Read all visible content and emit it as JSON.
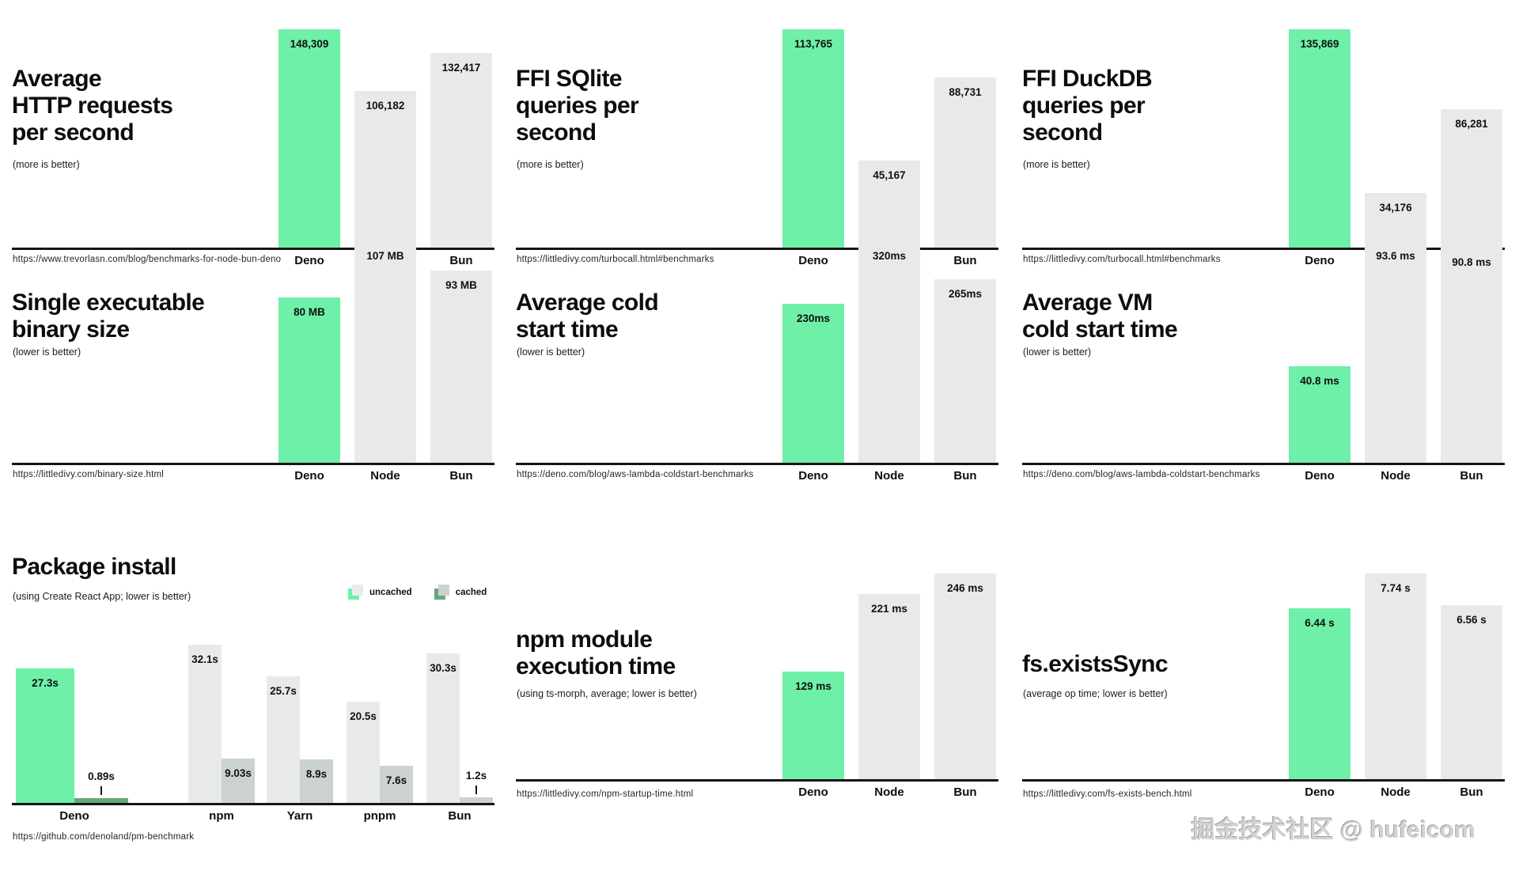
{
  "watermark": "掘金技术社区 @ hufeicom",
  "colors": {
    "deno_green": "#6ef0a8",
    "bar_gray": "#e8eaea",
    "cached_gray": "#ccd1d1",
    "cached_green": "#66a87b",
    "baseline_black": "#151515"
  },
  "chart_data": [
    {
      "type": "bar",
      "title_lines": [
        "Average",
        "HTTP requests",
        "per second"
      ],
      "subtitle": "(more is better)",
      "source_url": "https://www.trevorlasn.com/blog/benchmarks-for-node-bun-deno",
      "categories": [
        "Deno",
        "Node",
        "Bun"
      ],
      "values": [
        148309,
        106182,
        132417
      ],
      "display_values": [
        "148,309",
        "106,182",
        "132,417"
      ],
      "highlight_category": "Deno",
      "better": "more"
    },
    {
      "type": "bar",
      "title_lines": [
        "FFI SQlite",
        "queries per",
        "second"
      ],
      "subtitle": "(more is better)",
      "source_url": "https://littledivy.com/turbocall.html#benchmarks",
      "categories": [
        "Deno",
        "Node",
        "Bun"
      ],
      "values": [
        113765,
        45167,
        88731
      ],
      "display_values": [
        "113,765",
        "45,167",
        "88,731"
      ],
      "highlight_category": "Deno",
      "better": "more"
    },
    {
      "type": "bar",
      "title_lines": [
        "FFI DuckDB",
        "queries per",
        "second"
      ],
      "subtitle": "(more is better)",
      "source_url": "https://littledivy.com/turbocall.html#benchmarks",
      "categories": [
        "Deno",
        "Node",
        "Bun"
      ],
      "values": [
        135869,
        34176,
        86281
      ],
      "display_values": [
        "135,869",
        "34,176",
        "86,281"
      ],
      "highlight_category": "Deno",
      "better": "more"
    },
    {
      "type": "bar",
      "title_lines": [
        "Single executable",
        "binary size"
      ],
      "subtitle": "(lower is better)",
      "source_url": "https://littledivy.com/binary-size.html",
      "categories": [
        "Deno",
        "Node",
        "Bun"
      ],
      "values": [
        80,
        107,
        93
      ],
      "display_values": [
        "80 MB",
        "107 MB",
        "93 MB"
      ],
      "highlight_category": "Deno",
      "better": "lower"
    },
    {
      "type": "bar",
      "title_lines": [
        "Average cold",
        "start time"
      ],
      "subtitle": "(lower is better)",
      "source_url": "https://deno.com/blog/aws-lambda-coldstart-benchmarks",
      "categories": [
        "Deno",
        "Node",
        "Bun"
      ],
      "values": [
        230,
        320,
        265
      ],
      "display_values": [
        "230ms",
        "320ms",
        "265ms"
      ],
      "highlight_category": "Deno",
      "better": "lower"
    },
    {
      "type": "bar",
      "title_lines": [
        "Average VM",
        "cold start time"
      ],
      "subtitle": "(lower is better)",
      "source_url": "https://deno.com/blog/aws-lambda-coldstart-benchmarks",
      "categories": [
        "Deno",
        "Node",
        "Bun"
      ],
      "values": [
        40.8,
        93.6,
        90.8
      ],
      "display_values": [
        "40.8 ms",
        "93.6 ms",
        "90.8 ms"
      ],
      "highlight_category": "Deno",
      "better": "lower"
    },
    {
      "type": "bar",
      "grouped": true,
      "title_lines": [
        "Package install"
      ],
      "subtitle": "(using Create React App; lower is better)",
      "source_url": "https://github.com/denoland/pm-benchmark",
      "categories": [
        "Deno",
        "npm",
        "Yarn",
        "pnpm",
        "Bun"
      ],
      "legend": [
        "uncached",
        "cached"
      ],
      "series": [
        {
          "name": "uncached",
          "values": [
            27.3,
            32.1,
            25.7,
            20.5,
            30.3
          ],
          "display": [
            "27.3s",
            "32.1s",
            "25.7s",
            "20.5s",
            "30.3s"
          ]
        },
        {
          "name": "cached",
          "values": [
            0.89,
            9.03,
            8.9,
            7.6,
            1.2
          ],
          "display": [
            "0.89s",
            "9.03s",
            "8.9s",
            "7.6s",
            "1.2s"
          ]
        }
      ],
      "highlight_category": "Deno",
      "better": "lower"
    },
    {
      "type": "bar",
      "title_lines": [
        "npm module",
        "execution time"
      ],
      "subtitle": "(using ts-morph, average; lower is better)",
      "source_url": "https://littledivy.com/npm-startup-time.html",
      "categories": [
        "Deno",
        "Node",
        "Bun"
      ],
      "values": [
        129,
        221,
        246
      ],
      "display_values": [
        "129 ms",
        "221 ms",
        "246 ms"
      ],
      "highlight_category": "Deno",
      "better": "lower"
    },
    {
      "type": "bar",
      "title_lines": [
        "fs.existsSync"
      ],
      "subtitle": "(average op time; lower is better)",
      "source_url": "https://littledivy.com/fs-exists-bench.html",
      "categories": [
        "Deno",
        "Node",
        "Bun"
      ],
      "values": [
        6.44,
        7.74,
        6.56
      ],
      "display_values": [
        "6.44 s",
        "7.74 s",
        "6.56 s"
      ],
      "highlight_category": "Deno",
      "better": "lower"
    }
  ]
}
